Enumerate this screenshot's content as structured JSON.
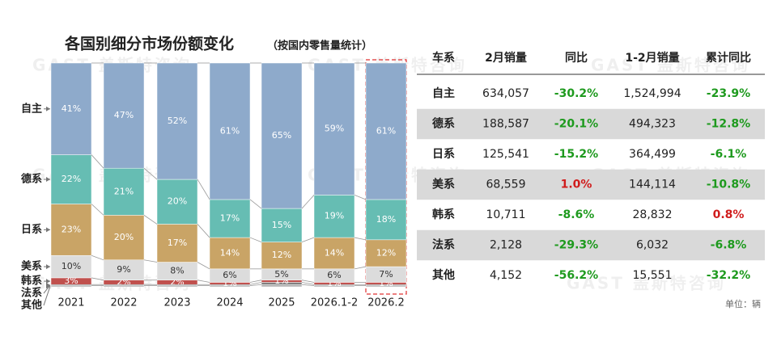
{
  "chart_data": {
    "type": "bar",
    "stacked": true,
    "title": "各国别细分市场份额变化",
    "subtitle": "（按国内零售量统计）",
    "categories": [
      "2021",
      "2022",
      "2023",
      "2024",
      "2025",
      "2026.1-2",
      "2026.2"
    ],
    "series": [
      {
        "name": "自主",
        "color": "#8eaacb",
        "values": [
          41,
          47,
          52,
          61,
          65,
          59,
          61
        ],
        "value_labels": [
          "41%",
          "47%",
          "52%",
          "61%",
          "65%",
          "59%",
          "61%"
        ]
      },
      {
        "name": "德系",
        "color": "#66bdb3",
        "values": [
          22,
          21,
          20,
          17,
          15,
          19,
          18
        ],
        "value_labels": [
          "22%",
          "21%",
          "20%",
          "17%",
          "15%",
          "19%",
          "18%"
        ]
      },
      {
        "name": "日系",
        "color": "#c9a466",
        "values": [
          23,
          20,
          17,
          14,
          12,
          14,
          12
        ],
        "value_labels": [
          "23%",
          "20%",
          "17%",
          "14%",
          "12%",
          "14%",
          "12%"
        ]
      },
      {
        "name": "美系",
        "color": "#dcdcdc",
        "values": [
          10,
          9,
          8,
          6,
          5,
          6,
          7
        ],
        "value_labels": [
          "10%",
          "9%",
          "8%",
          "6%",
          "5%",
          "6%",
          "7%"
        ]
      },
      {
        "name": "韩系",
        "color": "#c0504d",
        "values": [
          3,
          2,
          2,
          1,
          1,
          1,
          1
        ],
        "value_labels": [
          "3%",
          "2%",
          "2%",
          "1%",
          "1%",
          "1%",
          "1%"
        ]
      },
      {
        "name": "法系",
        "color": "#7f7f7f",
        "values": [
          0.5,
          0.5,
          0.5,
          0.5,
          1,
          0.5,
          0.5
        ]
      },
      {
        "name": "其他",
        "color": "#b0b0b0",
        "values": [
          0.5,
          0.5,
          0.5,
          0.5,
          1,
          0.5,
          0.5
        ]
      }
    ],
    "ylim": [
      0,
      100
    ]
  },
  "table": {
    "columns": [
      "车系",
      "2月销量",
      "同比",
      "1-2月销量",
      "累计同比"
    ],
    "rows": [
      [
        "自主",
        "634,057",
        "-30.2%",
        "1,524,994",
        "-23.9%"
      ],
      [
        "德系",
        "188,587",
        "-20.1%",
        "494,323",
        "-12.8%"
      ],
      [
        "日系",
        "125,541",
        "-15.2%",
        "364,499",
        "-6.1%"
      ],
      [
        "美系",
        "68,559",
        "1.0%",
        "144,114",
        "-10.8%"
      ],
      [
        "韩系",
        "10,711",
        "-8.6%",
        "28,832",
        "0.8%"
      ],
      [
        "法系",
        "2,128",
        "-29.3%",
        "6,032",
        "-6.8%"
      ],
      [
        "其他",
        "4,152",
        "-56.2%",
        "15,551",
        "-32.2%"
      ]
    ],
    "unit": "单位：辆"
  },
  "watermark": "GAST 盖斯特咨询"
}
